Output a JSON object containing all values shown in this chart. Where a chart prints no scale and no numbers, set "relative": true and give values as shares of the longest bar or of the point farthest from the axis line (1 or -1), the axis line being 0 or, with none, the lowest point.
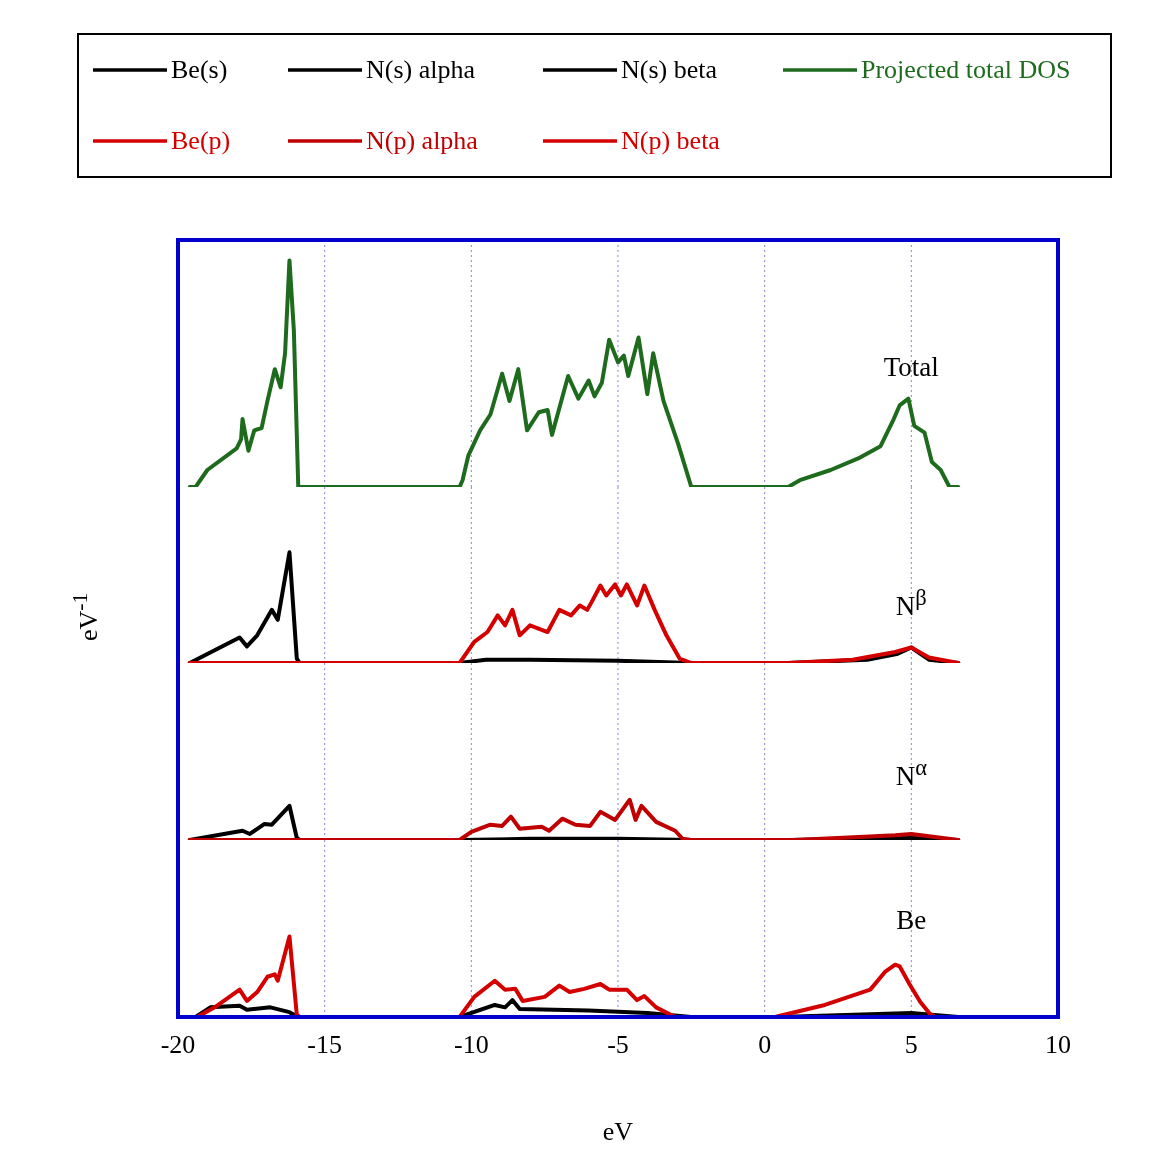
{
  "chart_data": [
    {
      "type": "line",
      "relative": true,
      "legend": "top",
      "grid": "x",
      "tick_labels": false,
      "xlim": [
        -20,
        10
      ],
      "xticks": [
        -20,
        -15,
        -10,
        -5,
        0,
        5,
        10
      ],
      "annotations": [
        "Total"
      ],
      "series": [
        {
          "name": "Projected total DOS",
          "color": "#1e6b1e",
          "x": [
            -19.6,
            -19.4,
            -19.0,
            -18.0,
            -17.85,
            -17.8,
            -17.6,
            -17.4,
            -17.15,
            -16.95,
            -16.7,
            -16.5,
            -16.35,
            -16.2,
            -16.05,
            -15.9,
            -10.4,
            -10.3,
            -10.1,
            -9.7,
            -9.35,
            -8.95,
            -8.7,
            -8.4,
            -8.1,
            -7.7,
            -7.4,
            -7.25,
            -6.7,
            -6.35,
            -6.0,
            -5.8,
            -5.55,
            -5.3,
            -5.0,
            -4.8,
            -4.65,
            -4.3,
            -4.0,
            -3.8,
            -3.45,
            -2.95,
            -2.5,
            0.8,
            1.2,
            2.25,
            3.25,
            3.95,
            4.4,
            4.6,
            4.9,
            5.1,
            5.45,
            5.7,
            6.0,
            6.3,
            6.6
          ],
          "values": [
            0,
            0,
            0.075,
            0.17,
            0.21,
            0.3,
            0.16,
            0.25,
            0.26,
            0.38,
            0.52,
            0.44,
            0.59,
            1.0,
            0.69,
            0,
            0,
            0.03,
            0.14,
            0.25,
            0.32,
            0.5,
            0.38,
            0.52,
            0.25,
            0.33,
            0.34,
            0.23,
            0.49,
            0.39,
            0.47,
            0.4,
            0.46,
            0.65,
            0.55,
            0.58,
            0.49,
            0.66,
            0.41,
            0.59,
            0.38,
            0.19,
            0,
            0,
            0.03,
            0.075,
            0.13,
            0.18,
            0.3,
            0.36,
            0.39,
            0.27,
            0.24,
            0.11,
            0.075,
            0,
            0
          ]
        }
      ]
    },
    {
      "type": "line",
      "relative": true,
      "legend": "top",
      "grid": "x",
      "tick_labels": false,
      "xlim": [
        -20,
        10
      ],
      "xticks": [
        -20,
        -15,
        -10,
        -5,
        0,
        5,
        10
      ],
      "ylabel": "eV$^{-1}$",
      "annotations": [
        "N$^{β}$"
      ],
      "series": [
        {
          "name": "N(s) beta",
          "color": "#000000",
          "x": [
            -19.6,
            -17.9,
            -17.65,
            -17.3,
            -16.8,
            -16.6,
            -16.2,
            -15.95,
            -15.85,
            -10.4,
            -9.5,
            -8.0,
            -5.0,
            -2.5,
            0.8,
            3.5,
            4.5,
            5.0,
            5.6,
            6.6
          ],
          "values": [
            0,
            0.23,
            0.15,
            0.25,
            0.48,
            0.39,
            1.0,
            0.04,
            0,
            0,
            0.03,
            0.03,
            0.02,
            0,
            0,
            0.03,
            0.08,
            0.14,
            0.03,
            0
          ]
        },
        {
          "name": "N(p) beta",
          "color": "#d40000",
          "x": [
            -19.6,
            -10.4,
            -9.9,
            -9.45,
            -9.1,
            -8.85,
            -8.6,
            -8.35,
            -8.0,
            -7.4,
            -7.0,
            -6.6,
            -6.3,
            -6.05,
            -5.9,
            -5.6,
            -5.4,
            -5.1,
            -4.9,
            -4.7,
            -4.35,
            -4.1,
            -3.75,
            -3.35,
            -2.9,
            -2.5,
            0.8,
            3.0,
            4.45,
            5.0,
            5.6,
            6.6
          ],
          "values": [
            0,
            0,
            0.19,
            0.28,
            0.43,
            0.34,
            0.48,
            0.25,
            0.34,
            0.28,
            0.48,
            0.43,
            0.52,
            0.48,
            0.55,
            0.7,
            0.61,
            0.71,
            0.61,
            0.71,
            0.52,
            0.7,
            0.48,
            0.25,
            0.04,
            0,
            0,
            0.03,
            0.1,
            0.14,
            0.05,
            0
          ]
        }
      ]
    },
    {
      "type": "line",
      "relative": true,
      "legend": "top",
      "grid": "x",
      "tick_labels": false,
      "xlim": [
        -20,
        10
      ],
      "xticks": [
        -20,
        -15,
        -10,
        -5,
        0,
        5,
        10
      ],
      "annotations": [
        "N$^{α}$"
      ],
      "series": [
        {
          "name": "N(s) alpha",
          "color": "#000000",
          "x": [
            -19.6,
            -17.8,
            -17.55,
            -17.05,
            -16.8,
            -16.2,
            -15.95,
            -15.85,
            -10.4,
            -8.0,
            -5.0,
            -2.5,
            0.8,
            5.0,
            6.6
          ],
          "values": [
            0,
            0.23,
            0.15,
            0.4,
            0.38,
            0.85,
            0.05,
            0,
            0,
            0.03,
            0.03,
            0,
            0,
            0.05,
            0
          ]
        },
        {
          "name": "N(p) alpha",
          "color": "#c00000",
          "x": [
            -19.6,
            -10.4,
            -10.0,
            -9.35,
            -8.95,
            -8.65,
            -8.35,
            -7.6,
            -7.35,
            -6.9,
            -6.45,
            -5.95,
            -5.6,
            -5.1,
            -4.6,
            -4.4,
            -4.2,
            -3.7,
            -3.05,
            -2.8,
            -2.5,
            1.0,
            2.5,
            4.45,
            5.0,
            6.6
          ],
          "values": [
            0,
            0,
            0.2,
            0.38,
            0.35,
            0.58,
            0.28,
            0.33,
            0.23,
            0.53,
            0.38,
            0.35,
            0.7,
            0.5,
            1.0,
            0.5,
            0.85,
            0.45,
            0.23,
            0.03,
            0,
            0,
            0.05,
            0.12,
            0.15,
            0
          ]
        }
      ]
    },
    {
      "type": "line",
      "relative": true,
      "legend": "top",
      "grid": "x",
      "tick_labels": "x",
      "xlim": [
        -20,
        10
      ],
      "xticks": [
        -20,
        -15,
        -10,
        -5,
        0,
        5,
        10
      ],
      "xlabel": "eV",
      "annotations": [
        "Be"
      ],
      "series": [
        {
          "name": "Be(s)",
          "color": "#000000",
          "x": [
            -19.4,
            -18.9,
            -17.9,
            -17.65,
            -16.85,
            -16.2,
            -15.9,
            -10.4,
            -9.2,
            -8.85,
            -8.6,
            -8.35,
            -6.0,
            -4.0,
            -2.5,
            0.5,
            5.0,
            6.6
          ],
          "values": [
            0,
            0.12,
            0.14,
            0.09,
            0.12,
            0.06,
            0,
            0,
            0.15,
            0.12,
            0.21,
            0.1,
            0.08,
            0.05,
            0,
            0,
            0.05,
            0
          ]
        },
        {
          "name": "Be(p)",
          "color": "#d40000",
          "x": [
            -19.35,
            -18.75,
            -17.9,
            -17.65,
            -17.3,
            -16.95,
            -16.7,
            -16.6,
            -16.2,
            -15.95,
            -15.85,
            -10.4,
            -9.9,
            -9.2,
            -8.85,
            -8.5,
            -8.25,
            -7.5,
            -7.0,
            -6.65,
            -6.15,
            -5.6,
            -5.3,
            -4.7,
            -4.35,
            -4.1,
            -3.7,
            -3.05,
            0.35,
            2.05,
            3.6,
            4.1,
            4.45,
            4.6,
            4.95,
            5.3,
            5.65,
            5.85,
            6.6
          ],
          "values": [
            0,
            0.12,
            0.34,
            0.2,
            0.31,
            0.5,
            0.53,
            0.45,
            1.0,
            0.03,
            0,
            0,
            0.25,
            0.45,
            0.34,
            0.35,
            0.2,
            0.25,
            0.39,
            0.31,
            0.35,
            0.41,
            0.34,
            0.34,
            0.21,
            0.26,
            0.12,
            0,
            0,
            0.15,
            0.34,
            0.56,
            0.65,
            0.63,
            0.4,
            0.19,
            0.03,
            0,
            0
          ]
        }
      ]
    }
  ]
}
